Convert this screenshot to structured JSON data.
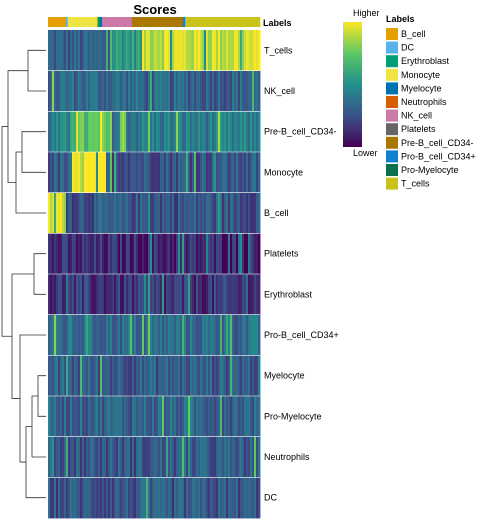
{
  "chart_data": {
    "type": "heatmap",
    "title": "Scores",
    "annotation_title": "Labels",
    "rows": [
      "T_cells",
      "NK_cell",
      "Pre-B_cell_CD34-",
      "Monocyte",
      "B_cell",
      "Platelets",
      "Erythroblast",
      "Pro-B_cell_CD34+",
      "Myelocyte",
      "Pro-Myelocyte",
      "Neutrophils",
      "DC"
    ],
    "column_groups": [
      {
        "label": "B_cell",
        "fraction": 0.085,
        "color": "#E69F00"
      },
      {
        "label": "DC",
        "fraction": 0.008,
        "color": "#56B4E9"
      },
      {
        "label": "Monocyte",
        "fraction": 0.14,
        "color": "#F0E442"
      },
      {
        "label": "Erythroblast",
        "fraction": 0.01,
        "color": "#009E73"
      },
      {
        "label": "Myelocyte",
        "fraction": 0.012,
        "color": "#0072B2"
      },
      {
        "label": "NK_cell",
        "fraction": 0.14,
        "color": "#CC79A7"
      },
      {
        "label": "Pre-B_cell_CD34-",
        "fraction": 0.24,
        "color": "#AA7700"
      },
      {
        "label": "Pro-B_cell_CD34+",
        "fraction": 0.012,
        "color": "#0F7FD0"
      },
      {
        "label": "T_cells",
        "fraction": 0.353,
        "color": "#CCC31A"
      }
    ],
    "high_blocks": [
      {
        "row": "T_cells",
        "from": 0.44,
        "to": 1.0,
        "level": 0.93
      },
      {
        "row": "T_cells",
        "from": 0.3,
        "to": 0.44,
        "level": 0.55
      },
      {
        "row": "NK_cell",
        "from": 0.0,
        "to": 0.44,
        "level": 0.35
      },
      {
        "row": "Pre-B_cell_CD34-",
        "from": 0.1,
        "to": 0.3,
        "level": 0.7
      },
      {
        "row": "Monocyte",
        "from": 0.11,
        "to": 0.27,
        "level": 0.95
      },
      {
        "row": "B_cell",
        "from": 0.0,
        "to": 0.085,
        "level": 0.95
      }
    ],
    "row_base_levels": [
      0.3,
      0.32,
      0.42,
      0.28,
      0.27,
      0.12,
      0.15,
      0.35,
      0.3,
      0.33,
      0.28,
      0.27
    ],
    "legend": {
      "title": "Labels",
      "items": [
        "B_cell",
        "DC",
        "Erythroblast",
        "Monocyte",
        "Myelocyte",
        "Neutrophils",
        "NK_cell",
        "Platelets",
        "Pre-B_cell_CD34-",
        "Pro-B_cell_CD34+",
        "Pro-Myelocyte",
        "T_cells"
      ],
      "colors": [
        "#E69F00",
        "#56B4E9",
        "#009E73",
        "#F0E442",
        "#0072B2",
        "#D55E00",
        "#CC79A7",
        "#666666",
        "#AA7700",
        "#0F7FD0",
        "#0B6E4F",
        "#CCC31A"
      ]
    },
    "colorbar": {
      "high_label": "Higher",
      "low_label": "Lower",
      "colors": [
        "#FDE725",
        "#5DC863",
        "#21908C",
        "#3B528B",
        "#440154"
      ]
    },
    "dendrogram": true
  }
}
